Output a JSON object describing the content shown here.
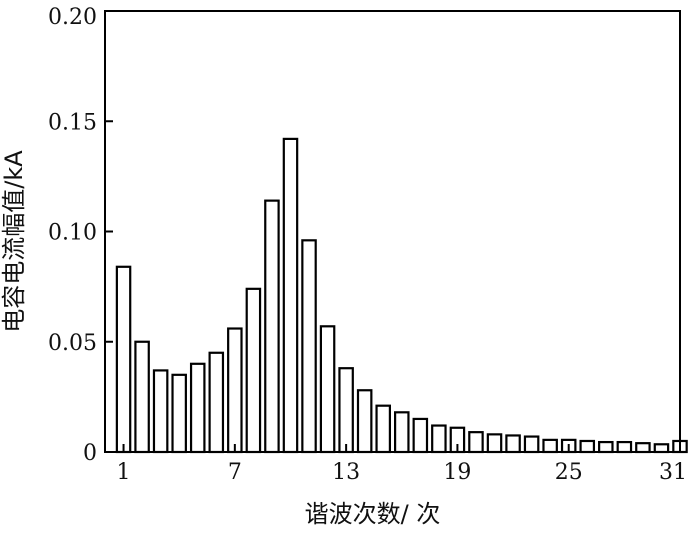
{
  "chart_data": {
    "type": "bar",
    "xlabel": "谐波次数/ 次",
    "ylabel": "电容电流幅值/kA",
    "xlim": [
      0,
      31
    ],
    "ylim": [
      0,
      0.2
    ],
    "grid": false,
    "x_tick_labels": [
      "1",
      "7",
      "13",
      "19",
      "25",
      "31"
    ],
    "y_tick_labels": [
      "0",
      "0.05",
      "0.10",
      "0.15",
      "0.20"
    ],
    "x_ticks": [
      1,
      7,
      13,
      19,
      25,
      31
    ],
    "y_ticks": [
      0,
      0.05,
      0.1,
      0.15,
      0.2
    ],
    "categories": [
      1,
      2,
      3,
      4,
      5,
      6,
      7,
      8,
      9,
      10,
      11,
      12,
      13,
      14,
      15,
      16,
      17,
      18,
      19,
      20,
      21,
      22,
      23,
      24,
      25,
      26,
      27,
      28,
      29,
      30,
      31
    ],
    "values": [
      0.084,
      0.05,
      0.037,
      0.035,
      0.04,
      0.045,
      0.056,
      0.074,
      0.114,
      0.142,
      0.096,
      0.057,
      0.038,
      0.028,
      0.021,
      0.018,
      0.015,
      0.012,
      0.011,
      0.009,
      0.008,
      0.0075,
      0.007,
      0.0055,
      0.0055,
      0.005,
      0.0045,
      0.0045,
      0.004,
      0.0035,
      0.005
    ]
  }
}
